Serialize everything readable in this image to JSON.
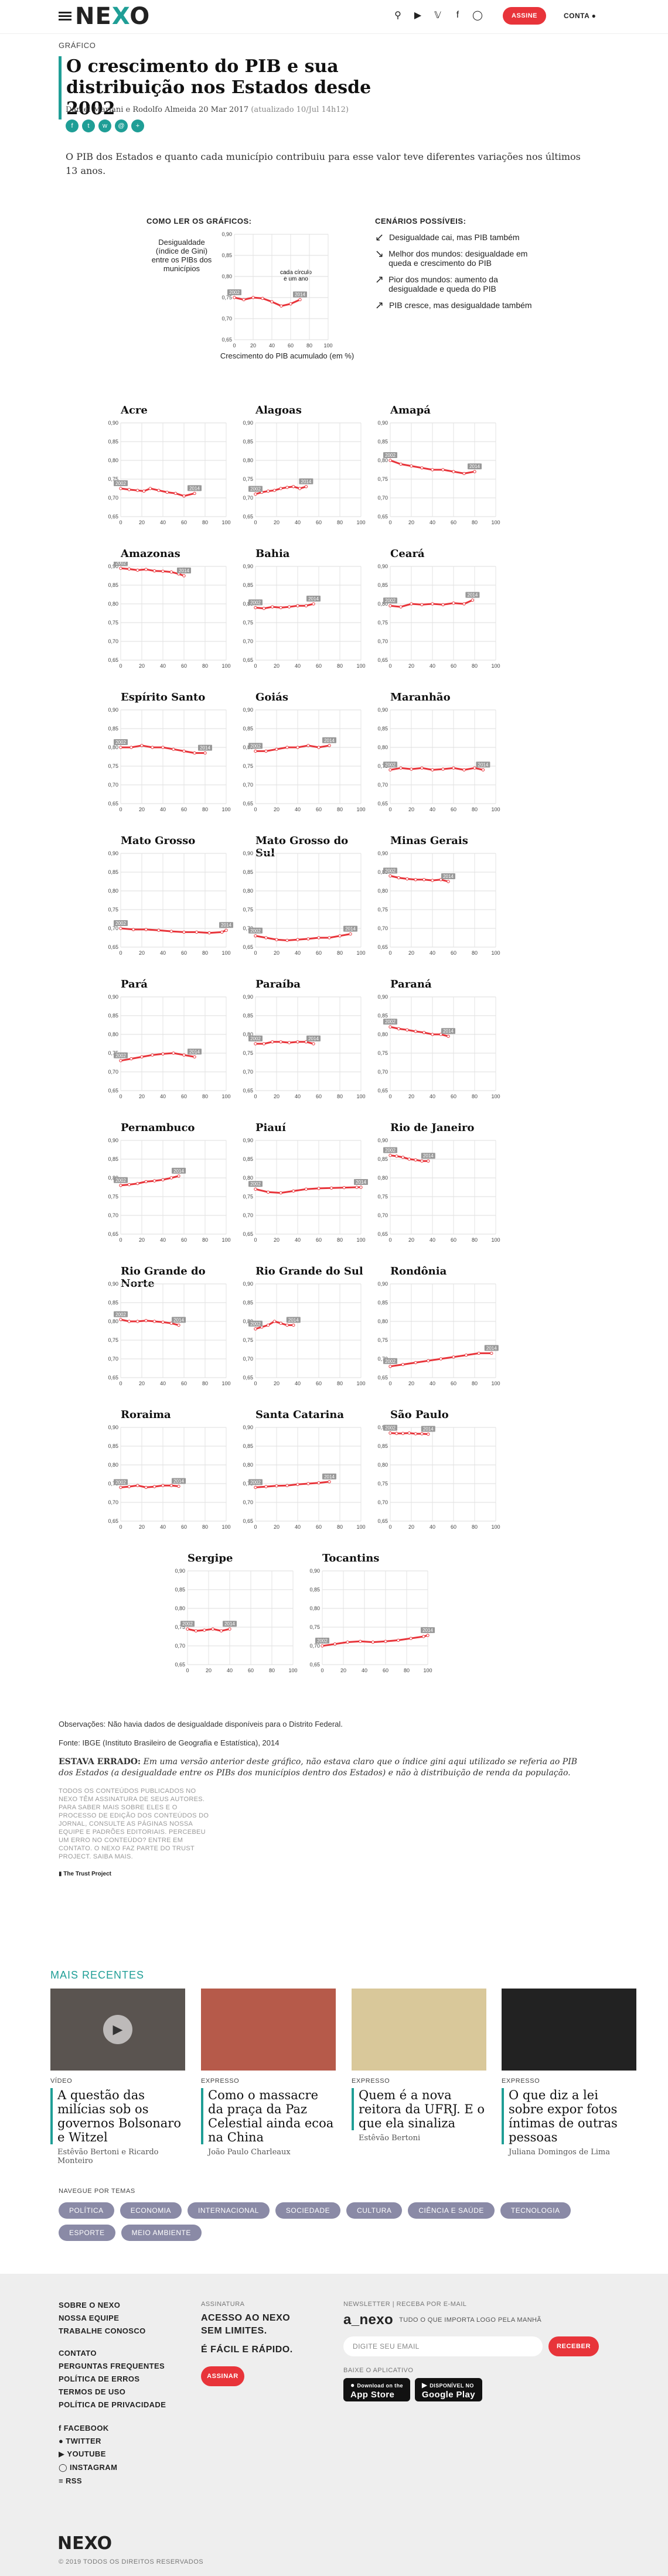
{
  "header": {
    "logo_text": "NEXO",
    "assine_label": "ASSINE",
    "conta_label": "CONTA"
  },
  "article": {
    "kicker": "GRÁFICO",
    "title": "O crescimento do PIB e sua distribuição nos Estados desde 2002",
    "byline": "Daniel Mariani e Rodolfo Almeida 20 Mar 2017",
    "updated": "(atualizado 10/Jul 14h12)",
    "lede": "O PIB dos Estados e quanto cada município contribuiu para esse valor teve diferentes variações nos últimos 13 anos."
  },
  "howto": {
    "title": "COMO LER OS GRÁFICOS:",
    "ylabel": "Desigualdade (índice de Gini) entre os PIBs dos municípios",
    "xlabel": "Crescimento do PIB acumulado (em %)",
    "annotation": "cada círculo é um ano",
    "scenarios_title": "CENÁRIOS POSSÍVEIS:",
    "scenarios": [
      {
        "arrow": "↙",
        "text": "Desigualdade cai, mas PIB também"
      },
      {
        "arrow": "↘",
        "text": "Melhor dos mundos: desigualdade em queda e crescimento do PIB"
      },
      {
        "arrow": "↗",
        "text": "Pior dos mundos: aumento da desigualdade e queda do PIB"
      },
      {
        "arrow": "↗",
        "text": "PIB cresce, mas desigualdade também"
      }
    ]
  },
  "chart_data": {
    "type": "line",
    "x_axis": "Crescimento do PIB acumulado (em %)",
    "y_axis": "Desigualdade (índice de Gini)",
    "xlim": [
      0,
      100
    ],
    "ylim": [
      0.65,
      0.9
    ],
    "xticks": [
      0,
      20,
      40,
      60,
      80,
      100
    ],
    "yticks": [
      0.65,
      0.7,
      0.75,
      0.8,
      0.85,
      0.9
    ],
    "start_label": "2002",
    "end_label": "2014",
    "series": [
      {
        "name": "Acre",
        "x": [
          0,
          8,
          16,
          22,
          28,
          36,
          44,
          52,
          60,
          70
        ],
        "y": [
          0.725,
          0.722,
          0.72,
          0.718,
          0.725,
          0.72,
          0.715,
          0.712,
          0.705,
          0.712
        ]
      },
      {
        "name": "Alagoas",
        "x": [
          0,
          6,
          12,
          18,
          24,
          30,
          36,
          42,
          48
        ],
        "y": [
          0.71,
          0.715,
          0.718,
          0.72,
          0.725,
          0.728,
          0.73,
          0.725,
          0.73
        ]
      },
      {
        "name": "Amapá",
        "x": [
          0,
          10,
          20,
          30,
          40,
          50,
          60,
          70,
          80
        ],
        "y": [
          0.8,
          0.79,
          0.785,
          0.78,
          0.775,
          0.775,
          0.77,
          0.765,
          0.77
        ]
      },
      {
        "name": "Amazonas",
        "x": [
          0,
          8,
          16,
          24,
          32,
          40,
          48,
          55,
          60
        ],
        "y": [
          0.895,
          0.893,
          0.89,
          0.892,
          0.888,
          0.887,
          0.885,
          0.88,
          0.875
        ]
      },
      {
        "name": "Bahia",
        "x": [
          0,
          8,
          16,
          24,
          32,
          40,
          48,
          55
        ],
        "y": [
          0.79,
          0.788,
          0.792,
          0.79,
          0.792,
          0.795,
          0.795,
          0.8
        ]
      },
      {
        "name": "Ceará",
        "x": [
          0,
          10,
          20,
          30,
          40,
          50,
          60,
          70,
          78
        ],
        "y": [
          0.795,
          0.792,
          0.8,
          0.798,
          0.8,
          0.798,
          0.802,
          0.8,
          0.81
        ]
      },
      {
        "name": "Espírito Santo",
        "x": [
          0,
          10,
          20,
          30,
          40,
          50,
          60,
          70,
          80
        ],
        "y": [
          0.8,
          0.8,
          0.805,
          0.8,
          0.8,
          0.795,
          0.79,
          0.785,
          0.785
        ]
      },
      {
        "name": "Goiás",
        "x": [
          0,
          10,
          20,
          30,
          40,
          50,
          60,
          70
        ],
        "y": [
          0.79,
          0.79,
          0.795,
          0.8,
          0.8,
          0.805,
          0.8,
          0.805
        ]
      },
      {
        "name": "Maranhão",
        "x": [
          0,
          10,
          20,
          30,
          40,
          50,
          60,
          70,
          80,
          88
        ],
        "y": [
          0.74,
          0.745,
          0.742,
          0.745,
          0.74,
          0.742,
          0.745,
          0.74,
          0.745,
          0.74
        ]
      },
      {
        "name": "Mato Grosso",
        "x": [
          0,
          12,
          24,
          36,
          48,
          60,
          72,
          84,
          96,
          100
        ],
        "y": [
          0.7,
          0.697,
          0.697,
          0.695,
          0.692,
          0.69,
          0.69,
          0.688,
          0.69,
          0.695
        ]
      },
      {
        "name": "Mato Grosso do Sul",
        "x": [
          0,
          10,
          20,
          30,
          40,
          50,
          60,
          70,
          80,
          90
        ],
        "y": [
          0.68,
          0.675,
          0.67,
          0.668,
          0.67,
          0.672,
          0.675,
          0.675,
          0.68,
          0.685
        ]
      },
      {
        "name": "Minas Gerais",
        "x": [
          0,
          8,
          16,
          24,
          32,
          40,
          48,
          55
        ],
        "y": [
          0.84,
          0.835,
          0.832,
          0.83,
          0.83,
          0.828,
          0.83,
          0.825
        ]
      },
      {
        "name": "Pará",
        "x": [
          0,
          10,
          20,
          30,
          40,
          50,
          60,
          70
        ],
        "y": [
          0.73,
          0.735,
          0.74,
          0.745,
          0.748,
          0.75,
          0.745,
          0.74
        ]
      },
      {
        "name": "Paraíba",
        "x": [
          0,
          8,
          16,
          24,
          32,
          40,
          48,
          55
        ],
        "y": [
          0.775,
          0.775,
          0.78,
          0.78,
          0.778,
          0.78,
          0.78,
          0.775
        ]
      },
      {
        "name": "Paraná",
        "x": [
          0,
          8,
          16,
          24,
          32,
          40,
          48,
          55
        ],
        "y": [
          0.82,
          0.815,
          0.812,
          0.808,
          0.805,
          0.8,
          0.8,
          0.795
        ]
      },
      {
        "name": "Pernambuco",
        "x": [
          0,
          8,
          16,
          24,
          32,
          40,
          48,
          55
        ],
        "y": [
          0.78,
          0.782,
          0.785,
          0.79,
          0.792,
          0.795,
          0.8,
          0.805
        ]
      },
      {
        "name": "Piauí",
        "x": [
          0,
          12,
          24,
          36,
          48,
          60,
          72,
          84,
          96,
          100
        ],
        "y": [
          0.77,
          0.762,
          0.76,
          0.765,
          0.77,
          0.772,
          0.773,
          0.774,
          0.775,
          0.775
        ]
      },
      {
        "name": "Rio de Janeiro",
        "x": [
          0,
          6,
          12,
          18,
          24,
          30,
          36
        ],
        "y": [
          0.86,
          0.858,
          0.855,
          0.85,
          0.848,
          0.845,
          0.845
        ]
      },
      {
        "name": "Rio Grande do Norte",
        "x": [
          0,
          8,
          16,
          24,
          32,
          40,
          48,
          55
        ],
        "y": [
          0.805,
          0.8,
          0.8,
          0.802,
          0.8,
          0.798,
          0.795,
          0.79
        ]
      },
      {
        "name": "Rio Grande do Sul",
        "x": [
          0,
          6,
          12,
          18,
          24,
          30,
          36
        ],
        "y": [
          0.78,
          0.785,
          0.79,
          0.8,
          0.795,
          0.79,
          0.79
        ]
      },
      {
        "name": "Rondônia",
        "x": [
          0,
          12,
          24,
          36,
          48,
          60,
          72,
          84,
          96
        ],
        "y": [
          0.68,
          0.685,
          0.69,
          0.695,
          0.7,
          0.705,
          0.71,
          0.715,
          0.715
        ]
      },
      {
        "name": "Roraima",
        "x": [
          0,
          8,
          16,
          24,
          32,
          40,
          48,
          55
        ],
        "y": [
          0.74,
          0.742,
          0.745,
          0.74,
          0.742,
          0.745,
          0.745,
          0.743
        ]
      },
      {
        "name": "Santa Catarina",
        "x": [
          0,
          10,
          20,
          30,
          40,
          50,
          60,
          70
        ],
        "y": [
          0.74,
          0.742,
          0.744,
          0.745,
          0.748,
          0.75,
          0.752,
          0.755
        ]
      },
      {
        "name": "São Paulo",
        "x": [
          0,
          6,
          12,
          18,
          24,
          30,
          36
        ],
        "y": [
          0.885,
          0.884,
          0.884,
          0.885,
          0.883,
          0.883,
          0.882
        ]
      },
      {
        "name": "Sergipe",
        "x": [
          0,
          8,
          16,
          24,
          32,
          40
        ],
        "y": [
          0.745,
          0.74,
          0.742,
          0.745,
          0.74,
          0.745
        ]
      },
      {
        "name": "Tocantins",
        "x": [
          0,
          12,
          24,
          36,
          48,
          60,
          72,
          84,
          96,
          100
        ],
        "y": [
          0.7,
          0.705,
          0.71,
          0.712,
          0.71,
          0.712,
          0.715,
          0.72,
          0.725,
          0.728
        ]
      }
    ]
  },
  "notes": {
    "obs": "Observações: Não havia dados de desigualdade disponíveis para o Distrito Federal.",
    "fonte": "Fonte: IBGE (Instituto Brasileiro de Geografia e Estatística), 2014",
    "errado_label": "ESTAVA ERRADO:",
    "errado_text": "Em uma versão anterior deste gráfico, não estava claro que o índice gini aqui utilizado se referia ao PIB dos Estados (a desigualdade entre os PIBs dos municípios dentro dos Estados) e não à distribuição de renda da população.",
    "policy": "TODOS OS CONTEÚDOS PUBLICADOS NO NEXO TÊM ASSINATURA DE SEUS AUTORES. PARA SABER MAIS SOBRE ELES E O PROCESSO DE EDIÇÃO DOS CONTEÚDOS DO JORNAL, CONSULTE AS PÁGINAS NOSSA EQUIPE E PADRÕES EDITORIAIS. PERCEBEU UM ERRO NO CONTEÚDO? ENTRE EM CONTATO. O NEXO FAZ PARTE DO TRUST PROJECT. SAIBA MAIS.",
    "trust": "The Trust Project"
  },
  "recent": {
    "title": "MAIS RECENTES",
    "items": [
      {
        "tag": "VÍDEO",
        "headline": "A questão das milícias sob os governos Bolsonaro e Witzel",
        "author": "Estêvão Bertoni e Ricardo Monteiro",
        "color": "#5a5450"
      },
      {
        "tag": "EXPRESSO",
        "headline": "Como o massacre da praça da Paz Celestial ainda ecoa na China",
        "author": "João Paulo Charleaux",
        "color": "#b65a4a"
      },
      {
        "tag": "EXPRESSO",
        "headline": "Quem é a nova reitora da UFRJ. E o que ela sinaliza",
        "author": "Estêvão Bertoni",
        "color": "#d9c89a"
      },
      {
        "tag": "EXPRESSO",
        "headline": "O que diz a lei sobre expor fotos íntimas de outras pessoas",
        "author": "Juliana Domingos de Lima",
        "color": "#222222"
      }
    ]
  },
  "temas": {
    "label": "NAVEGUE POR TEMAS",
    "items": [
      "POLÍTICA",
      "ECONOMIA",
      "INTERNACIONAL",
      "SOCIEDADE",
      "CULTURA",
      "CIÊNCIA E SAÚDE",
      "TECNOLOGIA",
      "ESPORTE",
      "MEIO AMBIENTE"
    ]
  },
  "footer": {
    "links1": [
      "SOBRE O NEXO",
      "NOSSA EQUIPE",
      "TRABALHE CONOSCO"
    ],
    "links2": [
      "CONTATO",
      "PERGUNTAS FREQUENTES",
      "POLÍTICA DE ERROS",
      "TERMOS DE USO",
      "POLÍTICA DE PRIVACIDADE"
    ],
    "social": [
      "FACEBOOK",
      "TWITTER",
      "YOUTUBE",
      "INSTAGRAM",
      "RSS"
    ],
    "assinatura_label": "ASSINATURA",
    "assinatura_text": "ACESSO AO NEXO SEM LIMITES.",
    "assinatura_text2": "É FÁCIL E RÁPIDO.",
    "assine_btn": "ASSINAR",
    "newsletter_label": "NEWSLETTER | RECEBA POR E-MAIL",
    "newsletter_logo": "a_nexo",
    "newsletter_tag": "TUDO O QUE IMPORTA LOGO PELA MANHÃ",
    "email_placeholder": "DIGITE SEU EMAIL",
    "receber_btn": "RECEBER",
    "app_label": "BAIXE O APLICATIVO",
    "appstore": "App Store",
    "googleplay": "Google Play",
    "appstore_small": "Download on the",
    "googleplay_small": "DISPONÍVEL NO",
    "logo": "NEXO",
    "copyright": "© 2019 TODOS OS DIREITOS RESERVADOS"
  }
}
